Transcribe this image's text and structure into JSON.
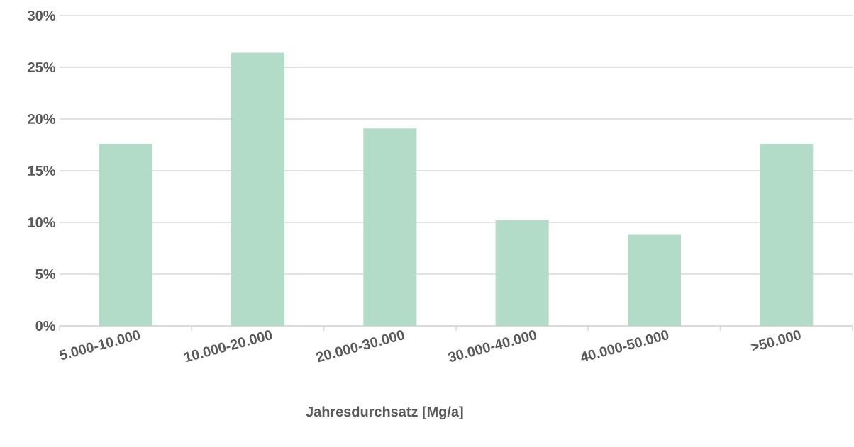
{
  "chart_data": {
    "type": "bar",
    "xlabel": "Jahresdurchsatz [Mg/a]",
    "categories": [
      "5.000-10.000",
      "10.000-20.000",
      "20.000-30.000",
      "30.000-40.000",
      "40.000-50.000",
      ">50.000"
    ],
    "values": [
      17.6,
      26.4,
      19.1,
      10.2,
      8.8,
      17.6
    ],
    "color": "#b3dcc8",
    "ylim": [
      0,
      30
    ],
    "yticks": [
      {
        "value": 0,
        "label": "0%"
      },
      {
        "value": 5,
        "label": "5%"
      },
      {
        "value": 10,
        "label": "10%"
      },
      {
        "value": 15,
        "label": "15%"
      },
      {
        "value": 20,
        "label": "20%"
      },
      {
        "value": 25,
        "label": "25%"
      },
      {
        "value": 30,
        "label": "30%"
      }
    ],
    "grid": "y"
  }
}
